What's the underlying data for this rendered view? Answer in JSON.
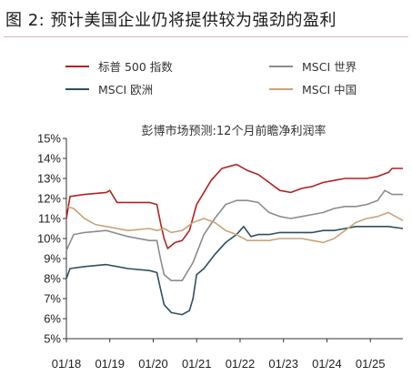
{
  "figure": {
    "title": "图 2:  预计美国企业仍将提供较为强劲的盈利"
  },
  "chart_data": {
    "type": "line",
    "title": "彭博市场预测:12个月前瞻净利润率",
    "x_ticks": [
      "01/18",
      "01/19",
      "01/20",
      "01/21",
      "01/22",
      "01/23",
      "01/24",
      "01/25"
    ],
    "xlim": [
      "2018-01",
      "2025-10"
    ],
    "y_ticks": [
      "5%",
      "6%",
      "7%",
      "8%",
      "9%",
      "10%",
      "11%",
      "12%",
      "13%",
      "14%",
      "15%"
    ],
    "ylim": [
      5,
      15
    ],
    "y_unit": "%",
    "grid": false,
    "legend_position": "top",
    "series": [
      {
        "name": "标普 500 指数",
        "color": "#b22222",
        "points": [
          [
            "2018-01",
            11.0
          ],
          [
            "2018-02",
            12.1
          ],
          [
            "2018-06",
            12.2
          ],
          [
            "2018-12",
            12.3
          ],
          [
            "2019-01",
            12.4
          ],
          [
            "2019-03",
            11.8
          ],
          [
            "2019-06",
            11.8
          ],
          [
            "2019-12",
            11.8
          ],
          [
            "2020-02",
            11.7
          ],
          [
            "2020-03",
            10.8
          ],
          [
            "2020-04",
            10.0
          ],
          [
            "2020-05",
            9.5
          ],
          [
            "2020-07",
            9.8
          ],
          [
            "2020-09",
            9.9
          ],
          [
            "2020-11",
            10.4
          ],
          [
            "2021-01",
            11.7
          ],
          [
            "2021-03",
            12.3
          ],
          [
            "2021-05",
            12.9
          ],
          [
            "2021-08",
            13.5
          ],
          [
            "2021-12",
            13.7
          ],
          [
            "2022-03",
            13.4
          ],
          [
            "2022-06",
            13.2
          ],
          [
            "2022-09",
            12.8
          ],
          [
            "2022-12",
            12.4
          ],
          [
            "2023-03",
            12.3
          ],
          [
            "2023-06",
            12.5
          ],
          [
            "2023-09",
            12.6
          ],
          [
            "2023-12",
            12.8
          ],
          [
            "2024-03",
            12.9
          ],
          [
            "2024-06",
            13.0
          ],
          [
            "2024-09",
            13.0
          ],
          [
            "2024-12",
            13.0
          ],
          [
            "2025-03",
            13.1
          ],
          [
            "2025-06",
            13.3
          ],
          [
            "2025-07",
            13.5
          ],
          [
            "2025-10",
            13.5
          ]
        ]
      },
      {
        "name": "MSCI 世界",
        "color": "#8c8c8c",
        "points": [
          [
            "2018-01",
            9.4
          ],
          [
            "2018-03",
            10.2
          ],
          [
            "2018-06",
            10.3
          ],
          [
            "2018-12",
            10.4
          ],
          [
            "2019-06",
            10.1
          ],
          [
            "2019-12",
            9.9
          ],
          [
            "2020-02",
            9.9
          ],
          [
            "2020-03",
            9.0
          ],
          [
            "2020-04",
            8.2
          ],
          [
            "2020-06",
            7.9
          ],
          [
            "2020-09",
            7.9
          ],
          [
            "2020-12",
            8.8
          ],
          [
            "2021-03",
            10.2
          ],
          [
            "2021-06",
            11.0
          ],
          [
            "2021-09",
            11.7
          ],
          [
            "2021-12",
            11.9
          ],
          [
            "2022-03",
            11.9
          ],
          [
            "2022-06",
            11.8
          ],
          [
            "2022-09",
            11.3
          ],
          [
            "2022-12",
            11.1
          ],
          [
            "2023-03",
            11.0
          ],
          [
            "2023-06",
            11.1
          ],
          [
            "2023-09",
            11.2
          ],
          [
            "2023-12",
            11.3
          ],
          [
            "2024-03",
            11.5
          ],
          [
            "2024-06",
            11.6
          ],
          [
            "2024-09",
            11.6
          ],
          [
            "2024-12",
            11.7
          ],
          [
            "2025-03",
            11.9
          ],
          [
            "2025-05",
            12.4
          ],
          [
            "2025-07",
            12.2
          ],
          [
            "2025-10",
            12.2
          ]
        ]
      },
      {
        "name": "MSCI 欧洲",
        "color": "#2f4f5f",
        "points": [
          [
            "2018-01",
            8.0
          ],
          [
            "2018-02",
            8.5
          ],
          [
            "2018-06",
            8.6
          ],
          [
            "2018-12",
            8.7
          ],
          [
            "2019-06",
            8.5
          ],
          [
            "2019-12",
            8.4
          ],
          [
            "2020-02",
            8.3
          ],
          [
            "2020-03",
            7.5
          ],
          [
            "2020-04",
            6.7
          ],
          [
            "2020-06",
            6.3
          ],
          [
            "2020-09",
            6.2
          ],
          [
            "2020-11",
            6.4
          ],
          [
            "2020-12",
            7.0
          ],
          [
            "2021-01",
            8.2
          ],
          [
            "2021-03",
            8.5
          ],
          [
            "2021-06",
            9.2
          ],
          [
            "2021-09",
            9.8
          ],
          [
            "2021-12",
            10.2
          ],
          [
            "2022-02",
            10.6
          ],
          [
            "2022-04",
            10.1
          ],
          [
            "2022-06",
            10.2
          ],
          [
            "2022-09",
            10.2
          ],
          [
            "2022-12",
            10.3
          ],
          [
            "2023-03",
            10.3
          ],
          [
            "2023-06",
            10.3
          ],
          [
            "2023-09",
            10.3
          ],
          [
            "2023-12",
            10.4
          ],
          [
            "2024-03",
            10.4
          ],
          [
            "2024-06",
            10.5
          ],
          [
            "2024-09",
            10.6
          ],
          [
            "2024-12",
            10.6
          ],
          [
            "2025-03",
            10.6
          ],
          [
            "2025-06",
            10.6
          ],
          [
            "2025-10",
            10.5
          ]
        ]
      },
      {
        "name": "MSCI 中国",
        "color": "#c9a37a",
        "points": [
          [
            "2018-01",
            11.6
          ],
          [
            "2018-03",
            11.5
          ],
          [
            "2018-06",
            11.0
          ],
          [
            "2018-09",
            10.7
          ],
          [
            "2018-12",
            10.6
          ],
          [
            "2019-06",
            10.4
          ],
          [
            "2019-12",
            10.5
          ],
          [
            "2020-02",
            10.4
          ],
          [
            "2020-04",
            10.5
          ],
          [
            "2020-06",
            10.3
          ],
          [
            "2020-09",
            10.4
          ],
          [
            "2020-12",
            10.8
          ],
          [
            "2021-03",
            11.0
          ],
          [
            "2021-06",
            10.8
          ],
          [
            "2021-09",
            10.4
          ],
          [
            "2021-12",
            10.2
          ],
          [
            "2022-03",
            9.9
          ],
          [
            "2022-06",
            9.9
          ],
          [
            "2022-09",
            9.9
          ],
          [
            "2022-12",
            10.0
          ],
          [
            "2023-03",
            10.0
          ],
          [
            "2023-06",
            10.0
          ],
          [
            "2023-09",
            9.9
          ],
          [
            "2023-12",
            9.8
          ],
          [
            "2024-03",
            10.0
          ],
          [
            "2024-06",
            10.4
          ],
          [
            "2024-09",
            10.8
          ],
          [
            "2024-12",
            11.0
          ],
          [
            "2025-03",
            11.1
          ],
          [
            "2025-06",
            11.3
          ],
          [
            "2025-08",
            11.1
          ],
          [
            "2025-10",
            10.9
          ]
        ]
      }
    ],
    "legend_layout": [
      {
        "series": 0
      },
      {
        "series": 1
      },
      {
        "series": 2
      },
      {
        "series": 3
      }
    ]
  }
}
